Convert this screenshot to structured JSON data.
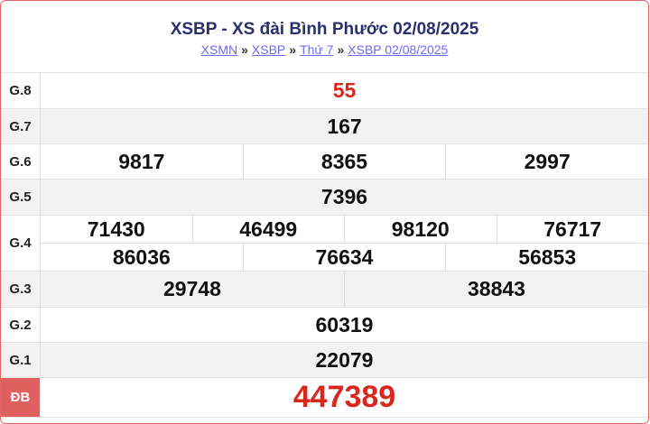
{
  "header": {
    "title": "XSBP - XS đài Bình Phước 02/08/2025",
    "breadcrumb": [
      "XSMN",
      "XSBP",
      "Thứ 7",
      "XSBP 02/08/2025"
    ],
    "separator": "»"
  },
  "prizes": [
    {
      "label": "G.8",
      "lines": [
        [
          "55"
        ]
      ]
    },
    {
      "label": "G.7",
      "lines": [
        [
          "167"
        ]
      ]
    },
    {
      "label": "G.6",
      "lines": [
        [
          "9817",
          "8365",
          "2997"
        ]
      ]
    },
    {
      "label": "G.5",
      "lines": [
        [
          "7396"
        ]
      ]
    },
    {
      "label": "G.4",
      "lines": [
        [
          "71430",
          "46499",
          "98120",
          "76717"
        ],
        [
          "86036",
          "76634",
          "56853"
        ]
      ]
    },
    {
      "label": "G.3",
      "lines": [
        [
          "29748",
          "38843"
        ]
      ]
    },
    {
      "label": "G.2",
      "lines": [
        [
          "60319"
        ]
      ]
    },
    {
      "label": "G.1",
      "lines": [
        [
          "22079"
        ]
      ]
    },
    {
      "label": "ĐB",
      "lines": [
        [
          "447389"
        ]
      ]
    }
  ],
  "colors": {
    "accent": "#d8281e",
    "title": "#2a2f6e",
    "link": "#6e6af0",
    "special_label_bg": "#e06060"
  }
}
